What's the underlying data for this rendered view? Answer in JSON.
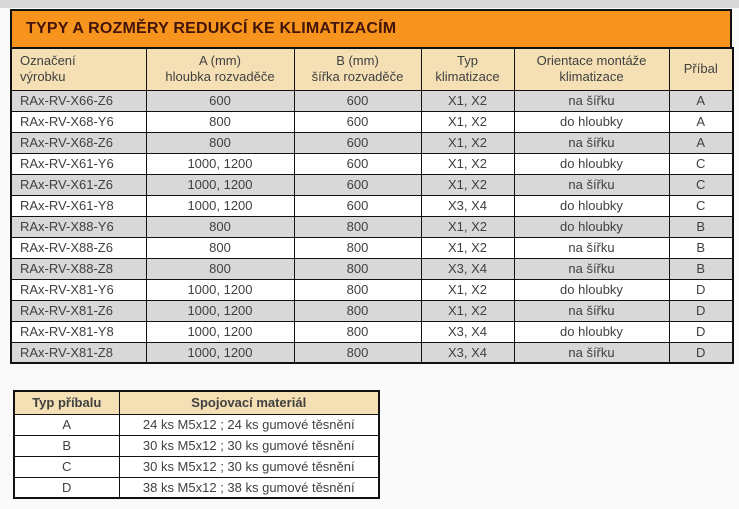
{
  "colors": {
    "title_bg": "#F7941D",
    "title_text": "#431409",
    "header_bg": "#F4E0B4",
    "row_alt_bg": "#D8D8D8",
    "row_bg": "#FFFFFF",
    "cell_text": "#404040",
    "border": "#111111",
    "top_strip": "#D8D8D8"
  },
  "main_table": {
    "title": "TYPY A ROZMĚRY REDUKCÍ KE KLIMATIZACÍM",
    "columns": [
      {
        "line1": "Označení",
        "line2": "výrobku"
      },
      {
        "line1": "A (mm)",
        "line2": "hloubka rozvaděče"
      },
      {
        "line1": "B (mm)",
        "line2": "šířka rozvaděče"
      },
      {
        "line1": "Typ",
        "line2": "klimatizace"
      },
      {
        "line1": "Orientace montáže",
        "line2": "klimatizace"
      },
      {
        "line1": "Příbal",
        "line2": ""
      }
    ],
    "rows": [
      [
        "RAx-RV-X66-Z6",
        "600",
        "600",
        "X1, X2",
        "na šířku",
        "A"
      ],
      [
        "RAx-RV-X68-Y6",
        "800",
        "600",
        "X1, X2",
        "do hloubky",
        "A"
      ],
      [
        "RAx-RV-X68-Z6",
        "800",
        "600",
        "X1, X2",
        "na šířku",
        "A"
      ],
      [
        "RAx-RV-X61-Y6",
        "1000, 1200",
        "600",
        "X1, X2",
        "do hloubky",
        "C"
      ],
      [
        "RAx-RV-X61-Z6",
        "1000, 1200",
        "600",
        "X1, X2",
        "na šířku",
        "C"
      ],
      [
        "RAx-RV-X61-Y8",
        "1000, 1200",
        "600",
        "X3, X4",
        "do hloubky",
        "C"
      ],
      [
        "RAx-RV-X88-Y6",
        "800",
        "800",
        "X1, X2",
        "do hloubky",
        "B"
      ],
      [
        "RAx-RV-X88-Z6",
        "800",
        "800",
        "X1, X2",
        "na šířku",
        "B"
      ],
      [
        "RAx-RV-X88-Z8",
        "800",
        "800",
        "X3, X4",
        "na šířku",
        "B"
      ],
      [
        "RAx-RV-X81-Y6",
        "1000, 1200",
        "800",
        "X1, X2",
        "do hloubky",
        "D"
      ],
      [
        "RAx-RV-X81-Z6",
        "1000, 1200",
        "800",
        "X1, X2",
        "na šířku",
        "D"
      ],
      [
        "RAx-RV-X81-Y8",
        "1000, 1200",
        "800",
        "X3, X4",
        "do hloubky",
        "D"
      ],
      [
        "RAx-RV-X81-Z8",
        "1000, 1200",
        "800",
        "X3, X4",
        "na šířku",
        "D"
      ]
    ]
  },
  "accessory_table": {
    "columns": [
      "Typ příbalu",
      "Spojovací materiál"
    ],
    "rows": [
      [
        "A",
        "24 ks M5x12 ; 24 ks gumové těsnění"
      ],
      [
        "B",
        "30 ks M5x12 ; 30 ks gumové těsnění"
      ],
      [
        "C",
        "30 ks M5x12 ; 30 ks gumové těsnění"
      ],
      [
        "D",
        "38 ks M5x12 ; 38 ks gumové těsnění"
      ]
    ]
  }
}
